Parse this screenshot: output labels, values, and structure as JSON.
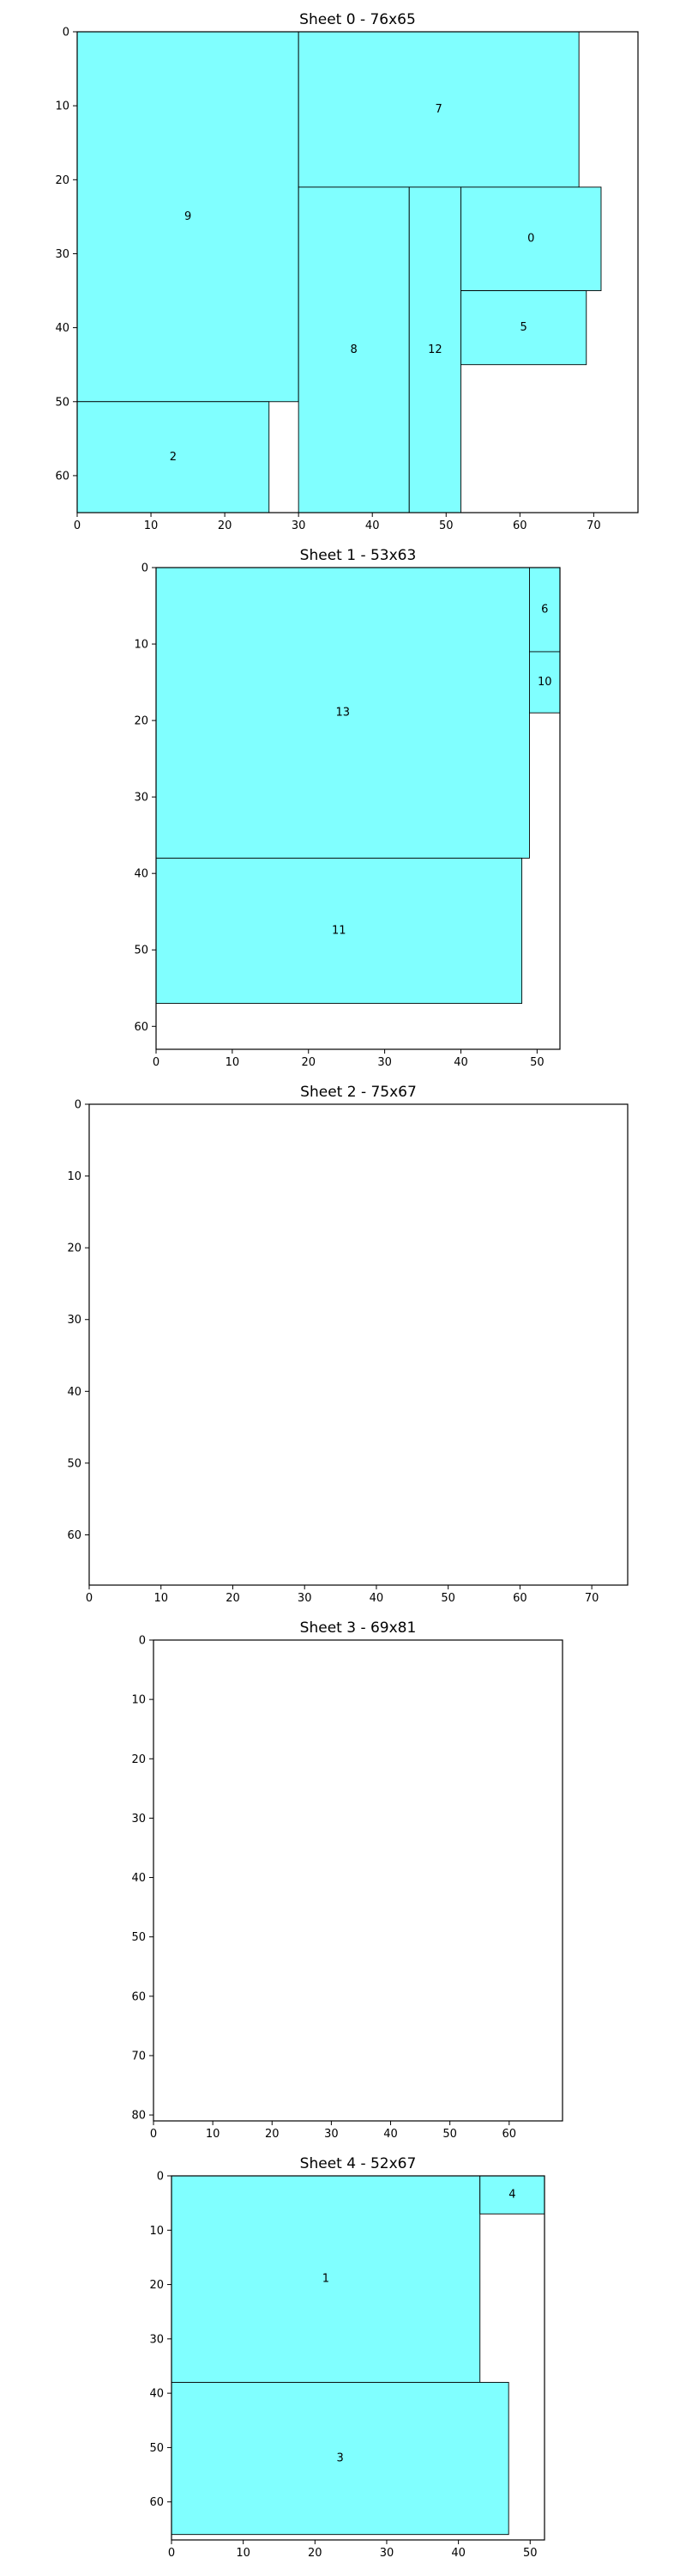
{
  "colors": {
    "piece_fill": "#80ffff",
    "piece_edge": "#000000",
    "frame": "#000000",
    "background": "#ffffff"
  },
  "chart_data": [
    {
      "type": "rect-packing",
      "title": "Sheet 0 - 76x65",
      "sheet": {
        "width": 76,
        "height": 65
      },
      "xticks": [
        0,
        10,
        20,
        30,
        40,
        50,
        60,
        70
      ],
      "yticks": [
        0,
        10,
        20,
        30,
        40,
        50,
        60
      ],
      "y_inverted": true,
      "grid": false,
      "rects": [
        {
          "label": "9",
          "x": 0,
          "y": 0,
          "w": 30,
          "h": 50
        },
        {
          "label": "2",
          "x": 0,
          "y": 50,
          "w": 26,
          "h": 15
        },
        {
          "label": "7",
          "x": 30,
          "y": 0,
          "w": 38,
          "h": 21
        },
        {
          "label": "8",
          "x": 30,
          "y": 21,
          "w": 15,
          "h": 44
        },
        {
          "label": "12",
          "x": 45,
          "y": 21,
          "w": 7,
          "h": 44
        },
        {
          "label": "0",
          "x": 52,
          "y": 21,
          "w": 19,
          "h": 14
        },
        {
          "label": "5",
          "x": 52,
          "y": 35,
          "w": 17,
          "h": 10
        }
      ]
    },
    {
      "type": "rect-packing",
      "title": "Sheet 1 - 53x63",
      "sheet": {
        "width": 53,
        "height": 63
      },
      "xticks": [
        0,
        10,
        20,
        30,
        40,
        50
      ],
      "yticks": [
        0,
        10,
        20,
        30,
        40,
        50,
        60
      ],
      "y_inverted": true,
      "grid": false,
      "rects": [
        {
          "label": "13",
          "x": 0,
          "y": 0,
          "w": 49,
          "h": 38
        },
        {
          "label": "6",
          "x": 49,
          "y": 0,
          "w": 4,
          "h": 11
        },
        {
          "label": "10",
          "x": 49,
          "y": 11,
          "w": 4,
          "h": 8
        },
        {
          "label": "11",
          "x": 0,
          "y": 38,
          "w": 48,
          "h": 19
        }
      ]
    },
    {
      "type": "rect-packing",
      "title": "Sheet 2 - 75x67",
      "sheet": {
        "width": 75,
        "height": 67
      },
      "xticks": [
        0,
        10,
        20,
        30,
        40,
        50,
        60,
        70
      ],
      "yticks": [
        0,
        10,
        20,
        30,
        40,
        50,
        60
      ],
      "y_inverted": true,
      "grid": false,
      "rects": []
    },
    {
      "type": "rect-packing",
      "title": "Sheet 3 - 69x81",
      "sheet": {
        "width": 69,
        "height": 81
      },
      "xticks": [
        0,
        10,
        20,
        30,
        40,
        50,
        60
      ],
      "yticks": [
        0,
        10,
        20,
        30,
        40,
        50,
        60,
        70,
        80
      ],
      "y_inverted": true,
      "grid": false,
      "rects": []
    },
    {
      "type": "rect-packing",
      "title": "Sheet 4 - 52x67",
      "sheet": {
        "width": 52,
        "height": 67
      },
      "xticks": [
        0,
        10,
        20,
        30,
        40,
        50
      ],
      "yticks": [
        0,
        10,
        20,
        30,
        40,
        50,
        60
      ],
      "y_inverted": true,
      "grid": false,
      "rects": [
        {
          "label": "1",
          "x": 0,
          "y": 0,
          "w": 43,
          "h": 38
        },
        {
          "label": "4",
          "x": 43,
          "y": 0,
          "w": 9,
          "h": 7
        },
        {
          "label": "3",
          "x": 0,
          "y": 38,
          "w": 47,
          "h": 28
        }
      ]
    }
  ]
}
